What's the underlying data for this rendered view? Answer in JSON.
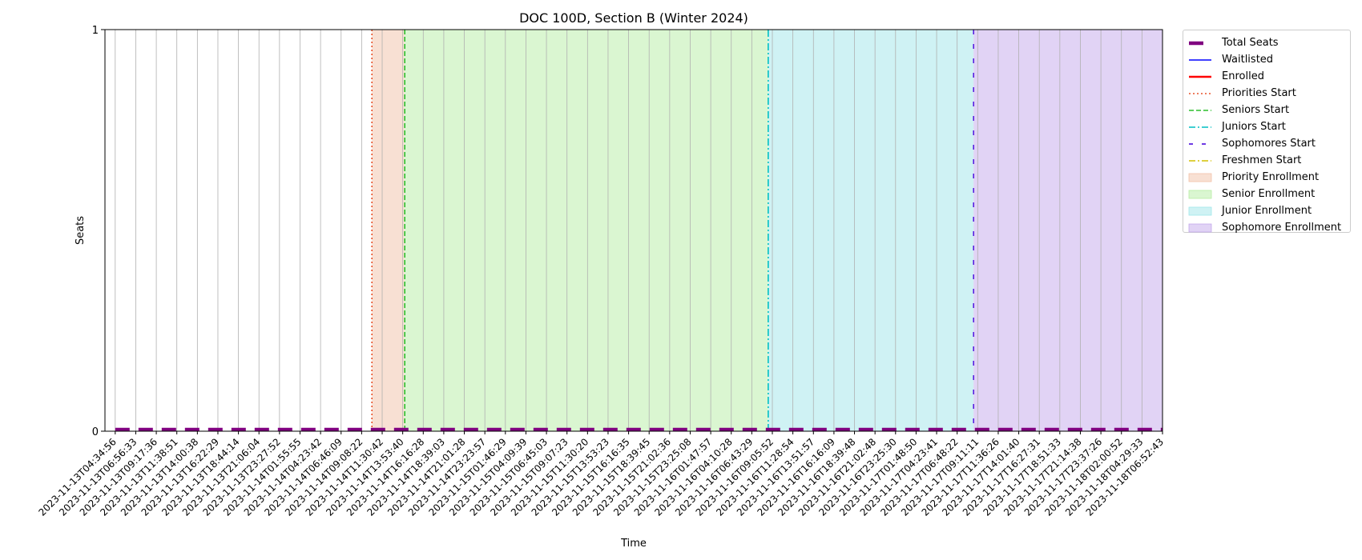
{
  "chart_data": {
    "type": "line",
    "title": "DOC 100D, Section B (Winter 2024)",
    "xlabel": "Time",
    "ylabel": "Seats",
    "ylim": [
      0,
      1
    ],
    "yticks": [
      "0",
      "1"
    ],
    "grid": "vertical lines at each timestamp",
    "legend_position": "outside right",
    "x": [
      "2023-11-13T04:34:56",
      "2023-11-13T06:56:33",
      "2023-11-13T09:17:36",
      "2023-11-13T11:38:51",
      "2023-11-13T14:00:38",
      "2023-11-13T16:22:29",
      "2023-11-13T18:44:14",
      "2023-11-13T21:06:04",
      "2023-11-13T23:27:52",
      "2023-11-14T01:55:55",
      "2023-11-14T04:23:42",
      "2023-11-14T06:46:09",
      "2023-11-14T09:08:22",
      "2023-11-14T11:30:42",
      "2023-11-14T13:53:40",
      "2023-11-14T16:16:28",
      "2023-11-14T18:39:03",
      "2023-11-14T21:01:28",
      "2023-11-14T23:23:57",
      "2023-11-15T01:46:29",
      "2023-11-15T04:09:39",
      "2023-11-15T06:45:03",
      "2023-11-15T09:07:23",
      "2023-11-15T11:30:20",
      "2023-11-15T13:53:23",
      "2023-11-15T16:16:35",
      "2023-11-15T18:39:45",
      "2023-11-15T21:02:36",
      "2023-11-15T23:25:08",
      "2023-11-16T01:47:57",
      "2023-11-16T04:10:28",
      "2023-11-16T06:43:29",
      "2023-11-16T09:05:52",
      "2023-11-16T11:28:54",
      "2023-11-16T13:51:57",
      "2023-11-16T16:16:09",
      "2023-11-16T18:39:48",
      "2023-11-16T21:02:48",
      "2023-11-16T23:25:30",
      "2023-11-17T01:48:50",
      "2023-11-17T04:23:41",
      "2023-11-17T06:48:22",
      "2023-11-17T09:11:11",
      "2023-11-17T11:36:26",
      "2023-11-17T14:01:40",
      "2023-11-17T16:27:31",
      "2023-11-17T18:51:33",
      "2023-11-17T21:14:38",
      "2023-11-17T23:37:26",
      "2023-11-18T02:00:52",
      "2023-11-18T04:29:33",
      "2023-11-18T06:52:43"
    ],
    "series": [
      {
        "name": "Total Seats",
        "style": "dashed-thick",
        "color": "#800080",
        "values": [
          0,
          0,
          0,
          0,
          0,
          0,
          0,
          0,
          0,
          0,
          0,
          0,
          0,
          0,
          0,
          0,
          0,
          0,
          0,
          0,
          0,
          0,
          0,
          0,
          0,
          0,
          0,
          0,
          0,
          0,
          0,
          0,
          0,
          0,
          0,
          0,
          0,
          0,
          0,
          0,
          0,
          0,
          0,
          0,
          0,
          0,
          0,
          0,
          0,
          0,
          0,
          0
        ]
      },
      {
        "name": "Waitlisted",
        "style": "solid",
        "color": "#0000ff",
        "values": [
          0,
          0,
          0,
          0,
          0,
          0,
          0,
          0,
          0,
          0,
          0,
          0,
          0,
          0,
          0,
          0,
          0,
          0,
          0,
          0,
          0,
          0,
          0,
          0,
          0,
          0,
          0,
          0,
          0,
          0,
          0,
          0,
          0,
          0,
          0,
          0,
          0,
          0,
          0,
          0,
          0,
          0,
          0,
          0,
          0,
          0,
          0,
          0,
          0,
          0,
          0,
          0
        ]
      },
      {
        "name": "Enrolled",
        "style": "solid-thick",
        "color": "#ff0000",
        "values": [
          0,
          0,
          0,
          0,
          0,
          0,
          0,
          0,
          0,
          0,
          0,
          0,
          0,
          0,
          0,
          0,
          0,
          0,
          0,
          0,
          0,
          0,
          0,
          0,
          0,
          0,
          0,
          0,
          0,
          0,
          0,
          0,
          0,
          0,
          0,
          0,
          0,
          0,
          0,
          0,
          0,
          0,
          0,
          0,
          0,
          0,
          0,
          0,
          0,
          0,
          0,
          0
        ]
      }
    ],
    "markers": [
      {
        "name": "Priorities Start",
        "index": 12.5,
        "color": "#e8522a",
        "dash": "2,3"
      },
      {
        "name": "Seniors Start",
        "index": 14.1,
        "color": "#2bbf2b",
        "dash": "6,3"
      },
      {
        "name": "Juniors Start",
        "index": 31.8,
        "color": "#00bfc4",
        "dash": "9,3,2,3"
      },
      {
        "name": "Sophomores Start",
        "index": 41.8,
        "color": "#5a1ee0",
        "dash": "6,12"
      },
      {
        "name": "Freshmen Start",
        "color": "#d4c000",
        "dash": "6,2,1,2"
      }
    ],
    "regions": [
      {
        "name": "Priority Enrollment",
        "start": 12.5,
        "end": 14.1,
        "color": "#f2c2a8"
      },
      {
        "name": "Senior Enrollment",
        "start": 14.1,
        "end": 31.8,
        "color": "#b6eda3"
      },
      {
        "name": "Junior Enrollment",
        "start": 31.8,
        "end": 41.8,
        "color": "#9fe6ea"
      },
      {
        "name": "Sophomore Enrollment",
        "start": 41.8,
        "end": 51.5,
        "color": "#c4a8ec"
      }
    ]
  },
  "legend": [
    {
      "label": "Total Seats",
      "icon": "thick-dash-line",
      "color": "#800080"
    },
    {
      "label": "Waitlisted",
      "icon": "solid-line",
      "color": "#0000ff"
    },
    {
      "label": "Enrolled",
      "icon": "thick-solid-line",
      "color": "#ff0000"
    },
    {
      "label": "Priorities Start",
      "icon": "dotted-line",
      "color": "#e8522a"
    },
    {
      "label": "Seniors Start",
      "icon": "dashed-line",
      "color": "#2bbf2b"
    },
    {
      "label": "Juniors Start",
      "icon": "dashdot-line",
      "color": "#00bfc4"
    },
    {
      "label": "Sophomores Start",
      "icon": "sparse-dash-line",
      "color": "#5a1ee0"
    },
    {
      "label": "Freshmen Start",
      "icon": "dashdot-line",
      "color": "#d4c000"
    },
    {
      "label": "Priority Enrollment",
      "icon": "filled-rect",
      "color": "#f2c2a8"
    },
    {
      "label": "Senior Enrollment",
      "icon": "filled-rect",
      "color": "#b6eda3"
    },
    {
      "label": "Junior Enrollment",
      "icon": "filled-rect",
      "color": "#9fe6ea"
    },
    {
      "label": "Sophomore Enrollment",
      "icon": "filled-rect",
      "color": "#c4a8ec"
    }
  ]
}
